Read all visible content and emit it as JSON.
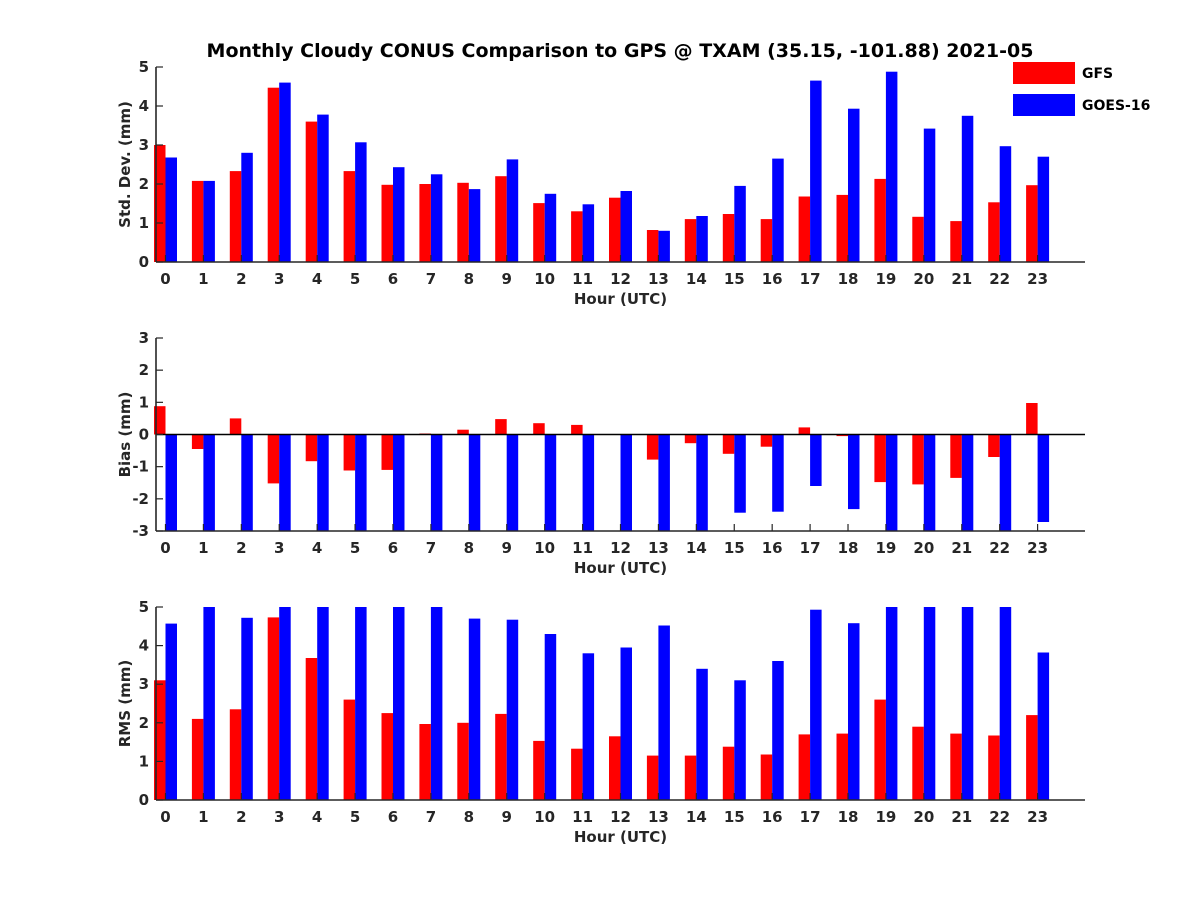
{
  "title": "Monthly Cloudy CONUS Comparison to GPS @ TXAM (35.15, -101.88) 2021-05",
  "legend": {
    "placement": "top-right",
    "entries": [
      {
        "name": "GFS",
        "color": "#ff0000"
      },
      {
        "name": "GOES-16",
        "color": "#0000ff"
      }
    ]
  },
  "chart_data": [
    {
      "type": "bar",
      "xlabel": "Hour (UTC)",
      "ylabel": "Std. Dev. (mm)",
      "ylim": [
        0,
        5
      ],
      "yticks": [
        0,
        1,
        2,
        3,
        4,
        5
      ],
      "categories": [
        "0",
        "1",
        "2",
        "3",
        "4",
        "5",
        "6",
        "7",
        "8",
        "9",
        "10",
        "11",
        "12",
        "13",
        "14",
        "15",
        "16",
        "17",
        "18",
        "19",
        "20",
        "21",
        "22",
        "23"
      ],
      "series": [
        {
          "name": "GFS",
          "color": "#ff0000",
          "values": [
            3.0,
            2.08,
            2.33,
            4.47,
            3.6,
            2.33,
            1.98,
            2.0,
            2.03,
            2.2,
            1.51,
            1.3,
            1.65,
            0.82,
            1.1,
            1.23,
            1.1,
            1.68,
            1.72,
            2.13,
            1.16,
            1.05,
            1.53,
            1.97
          ]
        },
        {
          "name": "GOES-16",
          "color": "#0000ff",
          "values": [
            2.68,
            2.08,
            2.8,
            4.6,
            3.78,
            3.07,
            2.43,
            2.25,
            1.87,
            2.63,
            1.75,
            1.48,
            1.82,
            0.8,
            1.18,
            1.95,
            2.65,
            4.65,
            3.93,
            4.88,
            3.42,
            3.75,
            2.97,
            2.7
          ]
        }
      ]
    },
    {
      "type": "bar",
      "xlabel": "Hour (UTC)",
      "ylabel": "Bias (mm)",
      "ylim": [
        -3,
        3
      ],
      "yticks": [
        -3,
        -2,
        -1,
        0,
        1,
        2,
        3
      ],
      "categories": [
        "0",
        "1",
        "2",
        "3",
        "4",
        "5",
        "6",
        "7",
        "8",
        "9",
        "10",
        "11",
        "12",
        "13",
        "14",
        "15",
        "16",
        "17",
        "18",
        "19",
        "20",
        "21",
        "22",
        "23"
      ],
      "series": [
        {
          "name": "GFS",
          "color": "#ff0000",
          "values": [
            0.88,
            -0.45,
            0.5,
            -1.52,
            -0.83,
            -1.12,
            -1.1,
            0.03,
            0.15,
            0.48,
            0.35,
            0.3,
            0.0,
            -0.78,
            -0.27,
            -0.6,
            -0.38,
            0.22,
            -0.05,
            -1.48,
            -1.55,
            -1.35,
            -0.7,
            0.98
          ]
        },
        {
          "name": "GOES-16",
          "color": "#0000ff",
          "values": [
            -3.0,
            -3.0,
            -3.0,
            -3.0,
            -3.0,
            -3.0,
            -3.0,
            -3.0,
            -3.0,
            -3.0,
            -3.0,
            -3.0,
            -3.0,
            -3.0,
            -3.0,
            -2.43,
            -2.4,
            -1.6,
            -2.32,
            -3.0,
            -3.0,
            -3.0,
            -3.0,
            -2.72
          ]
        }
      ]
    },
    {
      "type": "bar",
      "xlabel": "Hour (UTC)",
      "ylabel": "RMS (mm)",
      "ylim": [
        0,
        5
      ],
      "yticks": [
        0,
        1,
        2,
        3,
        4,
        5
      ],
      "categories": [
        "0",
        "1",
        "2",
        "3",
        "4",
        "5",
        "6",
        "7",
        "8",
        "9",
        "10",
        "11",
        "12",
        "13",
        "14",
        "15",
        "16",
        "17",
        "18",
        "19",
        "20",
        "21",
        "22",
        "23"
      ],
      "series": [
        {
          "name": "GFS",
          "color": "#ff0000",
          "values": [
            3.1,
            2.1,
            2.35,
            4.73,
            3.68,
            2.6,
            2.25,
            1.97,
            2.0,
            2.23,
            1.53,
            1.33,
            1.65,
            1.15,
            1.15,
            1.38,
            1.18,
            1.7,
            1.72,
            2.6,
            1.9,
            1.72,
            1.67,
            2.2
          ]
        },
        {
          "name": "GOES-16",
          "color": "#0000ff",
          "values": [
            4.57,
            5.0,
            4.72,
            5.0,
            5.0,
            5.0,
            5.0,
            5.0,
            4.7,
            4.67,
            4.3,
            3.8,
            3.95,
            4.52,
            3.4,
            3.1,
            3.6,
            4.93,
            4.58,
            5.0,
            5.0,
            5.0,
            5.0,
            3.82
          ]
        }
      ]
    }
  ]
}
